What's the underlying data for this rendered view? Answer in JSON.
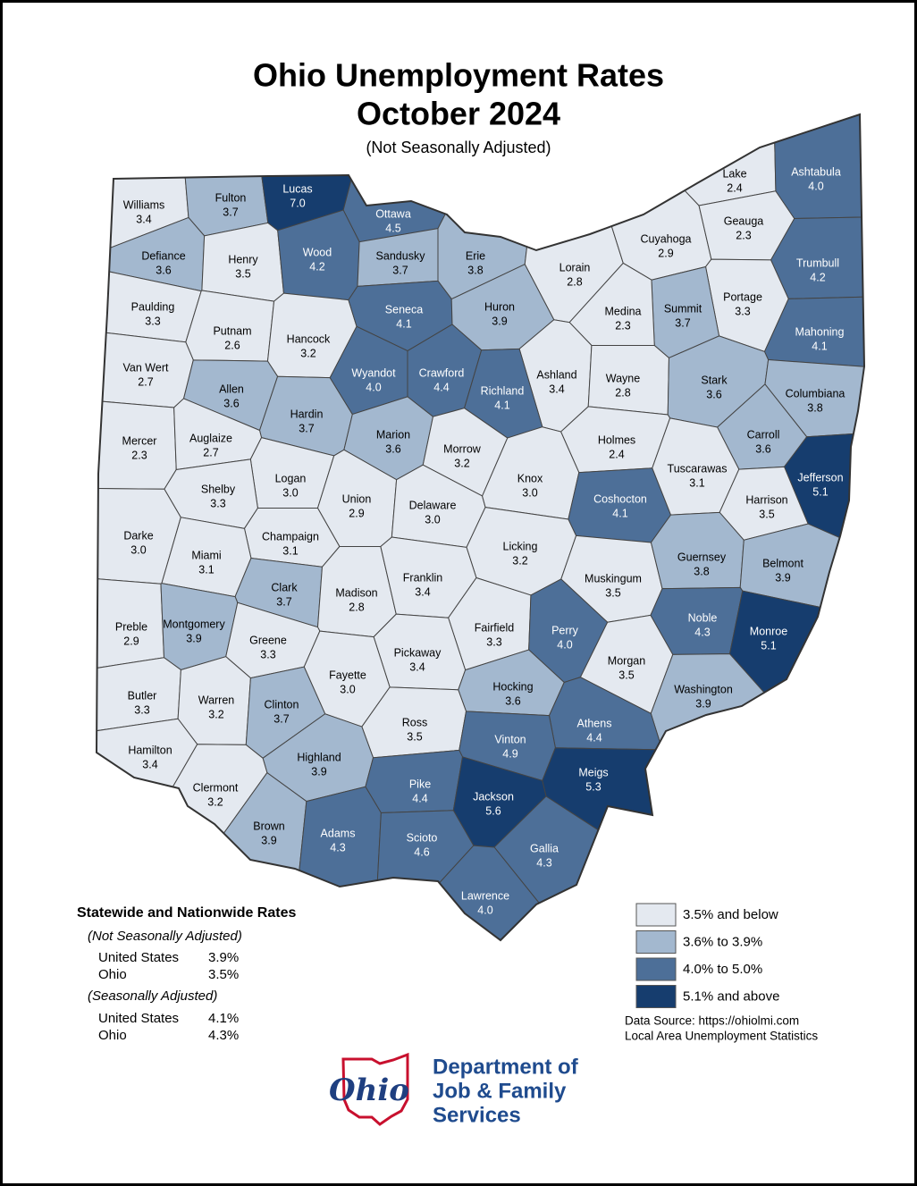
{
  "header": {
    "title_line1": "Ohio Unemployment Rates",
    "title_line2": "October 2024",
    "subtitle": "(Not Seasonally Adjusted)"
  },
  "counties": [
    {
      "name": "Williams",
      "rate": 3.4
    },
    {
      "name": "Fulton",
      "rate": 3.7
    },
    {
      "name": "Lucas",
      "rate": 7.0,
      "rate_label": "7.0"
    },
    {
      "name": "Ottawa",
      "rate": 4.5
    },
    {
      "name": "Defiance",
      "rate": 3.6
    },
    {
      "name": "Henry",
      "rate": 3.5
    },
    {
      "name": "Wood",
      "rate": 4.2
    },
    {
      "name": "Sandusky",
      "rate": 3.7
    },
    {
      "name": "Erie",
      "rate": 3.8
    },
    {
      "name": "Lorain",
      "rate": 2.8
    },
    {
      "name": "Cuyahoga",
      "rate": 2.9
    },
    {
      "name": "Lake",
      "rate": 2.4
    },
    {
      "name": "Geauga",
      "rate": 2.3
    },
    {
      "name": "Ashtabula",
      "rate": 4.0,
      "rate_label": "4.0"
    },
    {
      "name": "Trumbull",
      "rate": 4.2
    },
    {
      "name": "Portage",
      "rate": 3.3
    },
    {
      "name": "Summit",
      "rate": 3.7
    },
    {
      "name": "Medina",
      "rate": 2.3
    },
    {
      "name": "Mahoning",
      "rate": 4.1
    },
    {
      "name": "Paulding",
      "rate": 3.3
    },
    {
      "name": "Putnam",
      "rate": 2.6
    },
    {
      "name": "Hancock",
      "rate": 3.2
    },
    {
      "name": "Seneca",
      "rate": 4.1
    },
    {
      "name": "Huron",
      "rate": 3.9
    },
    {
      "name": "Ashland",
      "rate": 3.4
    },
    {
      "name": "Wayne",
      "rate": 2.8
    },
    {
      "name": "Stark",
      "rate": 3.6
    },
    {
      "name": "Columbiana",
      "rate": 3.8
    },
    {
      "name": "Van Wert",
      "rate": 2.7
    },
    {
      "name": "Allen",
      "rate": 3.6
    },
    {
      "name": "Hardin",
      "rate": 3.7
    },
    {
      "name": "Wyandot",
      "rate": 4.0,
      "rate_label": "4.0"
    },
    {
      "name": "Crawford",
      "rate": 4.4
    },
    {
      "name": "Richland",
      "rate": 4.1
    },
    {
      "name": "Marion",
      "rate": 3.6
    },
    {
      "name": "Morrow",
      "rate": 3.2
    },
    {
      "name": "Holmes",
      "rate": 2.4
    },
    {
      "name": "Carroll",
      "rate": 3.6
    },
    {
      "name": "Jefferson",
      "rate": 5.1
    },
    {
      "name": "Mercer",
      "rate": 2.3
    },
    {
      "name": "Auglaize",
      "rate": 2.7
    },
    {
      "name": "Logan",
      "rate": 3.0,
      "rate_label": "3.0"
    },
    {
      "name": "Union",
      "rate": 2.9
    },
    {
      "name": "Delaware",
      "rate": 3.0,
      "rate_label": "3.0"
    },
    {
      "name": "Knox",
      "rate": 3.0,
      "rate_label": "3.0"
    },
    {
      "name": "Coshocton",
      "rate": 4.1
    },
    {
      "name": "Tuscarawas",
      "rate": 3.1
    },
    {
      "name": "Harrison",
      "rate": 3.5
    },
    {
      "name": "Shelby",
      "rate": 3.3
    },
    {
      "name": "Darke",
      "rate": 3.0,
      "rate_label": "3.0"
    },
    {
      "name": "Champaign",
      "rate": 3.1
    },
    {
      "name": "Licking",
      "rate": 3.2
    },
    {
      "name": "Muskingum",
      "rate": 3.5
    },
    {
      "name": "Guernsey",
      "rate": 3.8
    },
    {
      "name": "Belmont",
      "rate": 3.9
    },
    {
      "name": "Miami",
      "rate": 3.1
    },
    {
      "name": "Clark",
      "rate": 3.7
    },
    {
      "name": "Madison",
      "rate": 2.8
    },
    {
      "name": "Franklin",
      "rate": 3.4
    },
    {
      "name": "Noble",
      "rate": 4.3
    },
    {
      "name": "Monroe",
      "rate": 5.1
    },
    {
      "name": "Preble",
      "rate": 2.9
    },
    {
      "name": "Montgomery",
      "rate": 3.9
    },
    {
      "name": "Greene",
      "rate": 3.3
    },
    {
      "name": "Fairfield",
      "rate": 3.3
    },
    {
      "name": "Perry",
      "rate": 4.0,
      "rate_label": "4.0"
    },
    {
      "name": "Pickaway",
      "rate": 3.4
    },
    {
      "name": "Morgan",
      "rate": 3.5
    },
    {
      "name": "Washington",
      "rate": 3.9
    },
    {
      "name": "Fayette",
      "rate": 3.0,
      "rate_label": "3.0"
    },
    {
      "name": "Butler",
      "rate": 3.3
    },
    {
      "name": "Warren",
      "rate": 3.2
    },
    {
      "name": "Clinton",
      "rate": 3.7
    },
    {
      "name": "Hocking",
      "rate": 3.6
    },
    {
      "name": "Athens",
      "rate": 4.4
    },
    {
      "name": "Ross",
      "rate": 3.5
    },
    {
      "name": "Vinton",
      "rate": 4.9
    },
    {
      "name": "Hamilton",
      "rate": 3.4
    },
    {
      "name": "Highland",
      "rate": 3.9
    },
    {
      "name": "Meigs",
      "rate": 5.3
    },
    {
      "name": "Clermont",
      "rate": 3.2
    },
    {
      "name": "Pike",
      "rate": 4.4
    },
    {
      "name": "Jackson",
      "rate": 5.6
    },
    {
      "name": "Brown",
      "rate": 3.9
    },
    {
      "name": "Adams",
      "rate": 4.3
    },
    {
      "name": "Scioto",
      "rate": 4.6
    },
    {
      "name": "Gallia",
      "rate": 4.3
    },
    {
      "name": "Lawrence",
      "rate": 4.0,
      "rate_label": "4.0"
    }
  ],
  "legend": [
    {
      "label": "3.5% and below",
      "color": "#e4e9f0",
      "max": 3.5
    },
    {
      "label": "3.6% to 3.9%",
      "color": "#a3b8cf",
      "min": 3.6,
      "max": 3.9
    },
    {
      "label": "4.0% to 5.0%",
      "color": "#4d6f98",
      "min": 4.0,
      "max": 5.0
    },
    {
      "label": "5.1% and above",
      "color": "#163d6e",
      "min": 5.1
    }
  ],
  "statewide": {
    "heading": "Statewide and Nationwide Rates",
    "nsa_label": "(Not Seasonally Adjusted)",
    "nsa_rows": [
      [
        "United States",
        "3.9%"
      ],
      [
        "Ohio",
        "3.5%"
      ]
    ],
    "sa_label": "(Seasonally Adjusted)",
    "sa_rows": [
      [
        "United States",
        "4.1%"
      ],
      [
        "Ohio",
        "4.3%"
      ]
    ]
  },
  "source": {
    "line1": "Data Source: https://ohiolmi.com",
    "line2": "Local Area Unemployment Statistics"
  },
  "logo": {
    "wordmark": "Ohio",
    "line1": "Department of",
    "line2": "Job & Family",
    "line3": "Services"
  }
}
